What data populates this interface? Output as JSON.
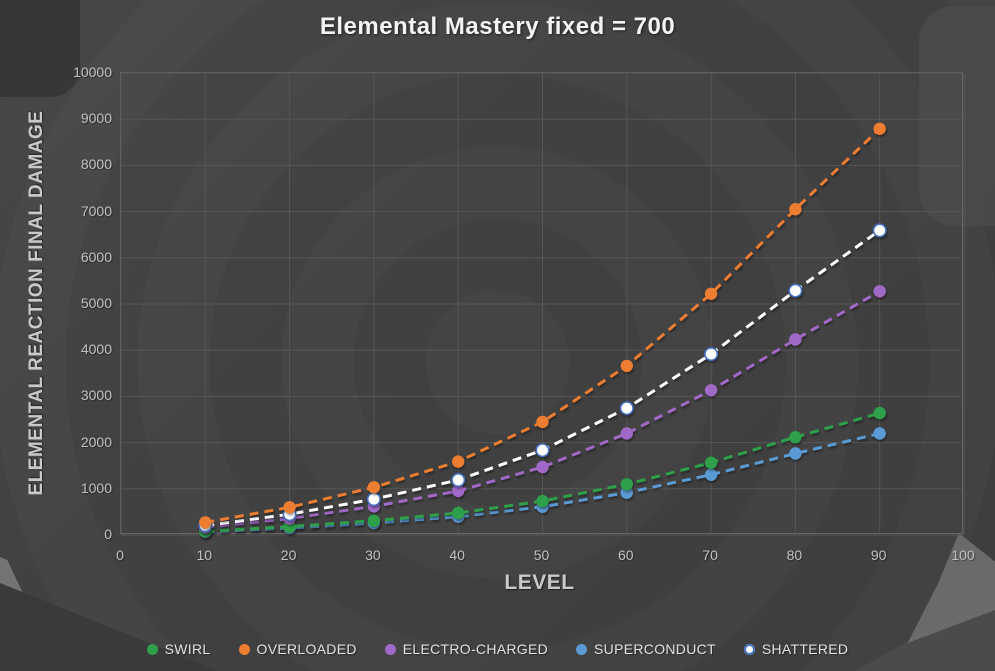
{
  "title": "Elemental Mastery fixed = 700",
  "chart_data": {
    "type": "line",
    "title": "Elemental Mastery fixed = 700",
    "xlabel": "LEVEL",
    "ylabel": "ELEMENTAL REACTION FINAL DAMAGE",
    "line_style": "dashed",
    "markers": "circle",
    "grid": true,
    "legend_position": "bottom",
    "xlim": [
      0,
      100
    ],
    "ylim": [
      0,
      10000
    ],
    "x_ticks": [
      0,
      10,
      20,
      30,
      40,
      50,
      60,
      70,
      80,
      90,
      100
    ],
    "y_ticks": [
      0,
      1000,
      2000,
      3000,
      4000,
      5000,
      6000,
      7000,
      8000,
      9000,
      10000
    ],
    "x": [
      10,
      20,
      30,
      40,
      50,
      60,
      70,
      80,
      90
    ],
    "series": [
      {
        "name": "SWIRL",
        "color": "#2ea049",
        "marker_fill": "#2ea049",
        "marker_stroke": "none",
        "values": [
          82,
          180,
          310,
          476,
          734,
          1098,
          1566,
          2116,
          2638
        ]
      },
      {
        "name": "OVERLOADED",
        "color": "#ed7d31",
        "marker_fill": "#ed7d31",
        "marker_stroke": "none",
        "values": [
          272,
          600,
          1032,
          1588,
          2448,
          3660,
          5220,
          7052,
          8792
        ]
      },
      {
        "name": "ELECTRO-CHARGED",
        "color": "#a069c8",
        "marker_fill": "#a069c8",
        "marker_stroke": "none",
        "values": [
          163,
          360,
          619,
          953,
          1469,
          2196,
          3132,
          4231,
          5275
        ]
      },
      {
        "name": "SUPERCONDUCT",
        "color": "#5b9bd5",
        "marker_fill": "#5b9bd5",
        "marker_stroke": "none",
        "values": [
          68,
          150,
          258,
          397,
          612,
          915,
          1305,
          1763,
          2198
        ]
      },
      {
        "name": "SHATTERED",
        "color": "#ffffff",
        "marker_fill": "#ffffff",
        "marker_stroke": "#4472c4",
        "values": [
          204,
          450,
          774,
          1191,
          1836,
          2745,
          3915,
          5289,
          6594
        ]
      }
    ],
    "draw_order": [
      "SUPERCONDUCT",
      "SWIRL",
      "ELECTRO-CHARGED",
      "SHATTERED",
      "OVERLOADED"
    ],
    "colors": {
      "background": "#424242",
      "gridline": "#565656",
      "plot_border": "#666666",
      "title_text": "#f4f4f4",
      "axis_text": "#c2c2c2"
    }
  }
}
